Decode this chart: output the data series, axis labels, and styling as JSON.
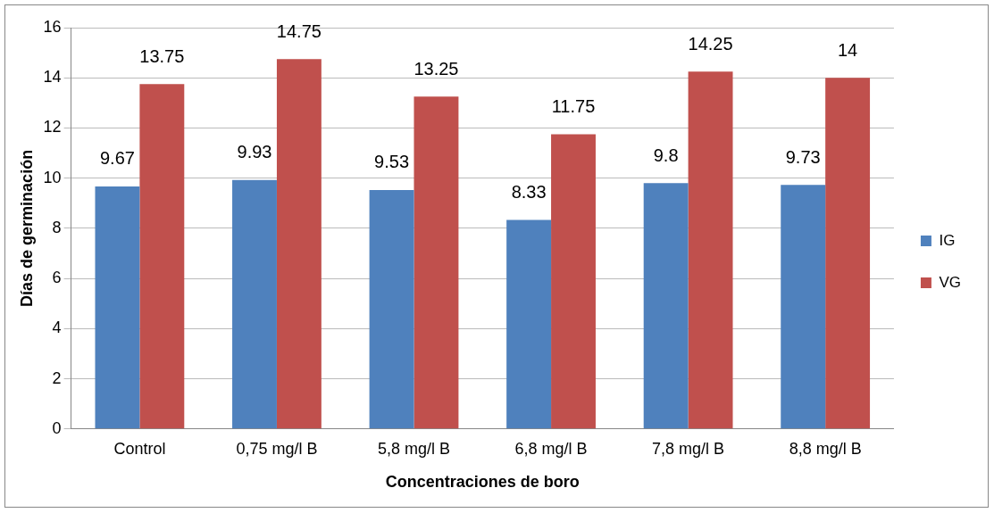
{
  "chart_data": {
    "type": "bar",
    "xlabel": "Concentraciones de boro",
    "ylabel": "Días de germinación",
    "categories": [
      "Control",
      "0,75 mg/l B",
      "5,8 mg/l B",
      "6,8 mg/l B",
      "7,8 mg/l B",
      "8,8 mg/l B"
    ],
    "series": [
      {
        "name": "IG",
        "color": "#4f81bd",
        "values": [
          9.67,
          9.93,
          9.53,
          8.33,
          9.8,
          9.73
        ]
      },
      {
        "name": "VG",
        "color": "#c0504d",
        "values": [
          13.75,
          14.75,
          13.25,
          11.75,
          14.25,
          14
        ]
      }
    ],
    "ylim": [
      0,
      16
    ],
    "yticks": [
      0,
      2,
      4,
      6,
      8,
      10,
      12,
      14,
      16
    ],
    "grid": "y",
    "legend": "right",
    "data_labels": true
  }
}
